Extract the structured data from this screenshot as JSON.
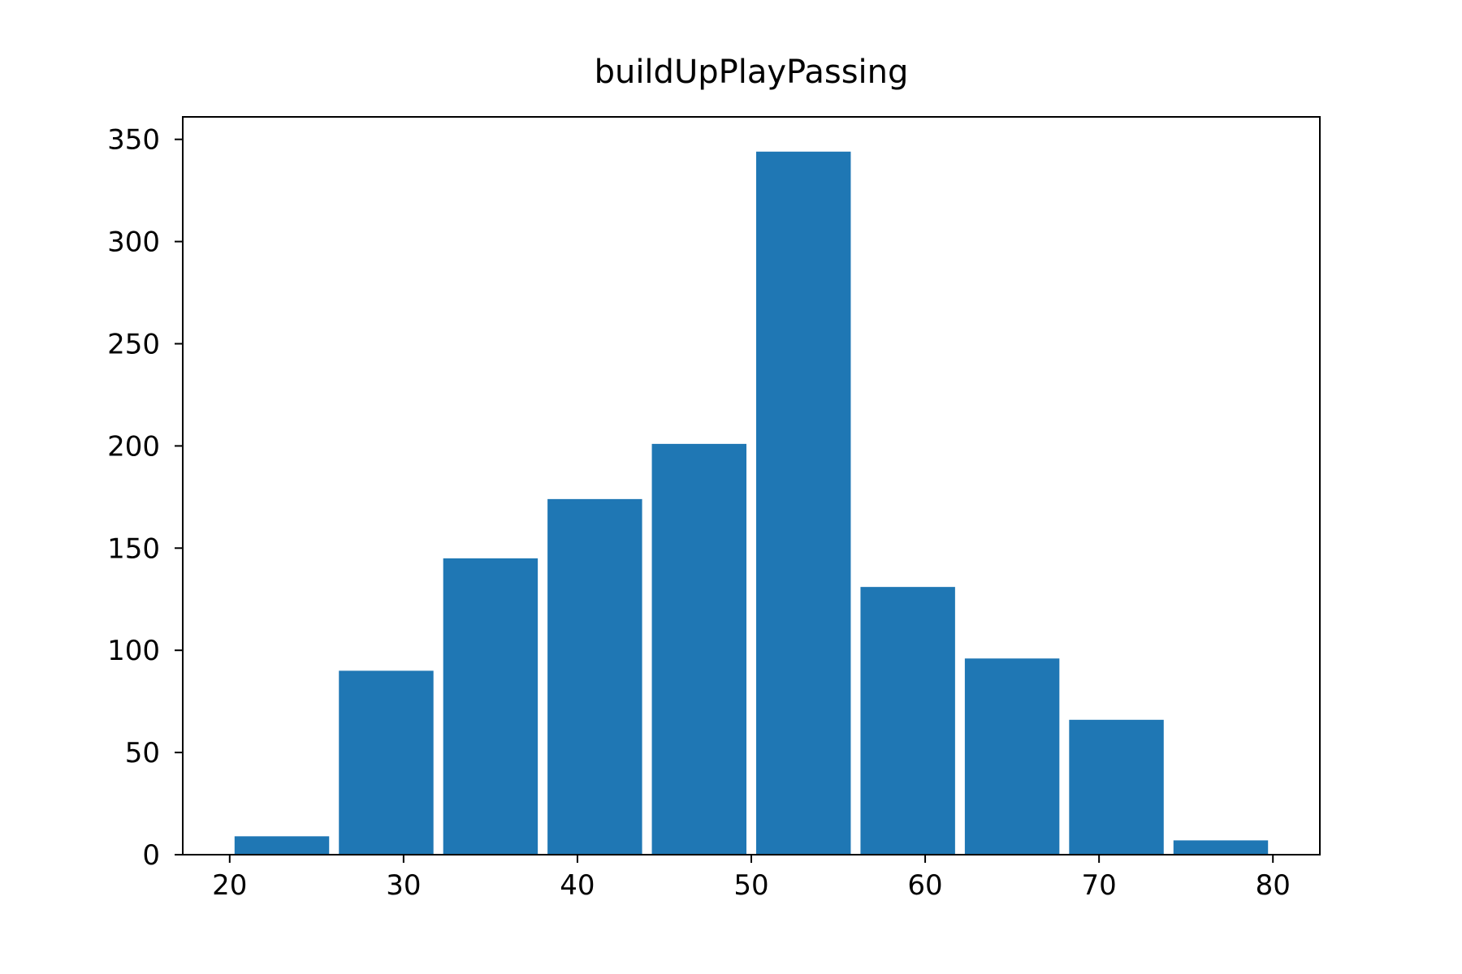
{
  "chart_data": {
    "type": "bar",
    "title": "buildUpPlayPassing",
    "xlabel": "",
    "ylabel": "",
    "bins": [
      {
        "start": 20,
        "end": 26,
        "count": 9
      },
      {
        "start": 26,
        "end": 32,
        "count": 90
      },
      {
        "start": 32,
        "end": 38,
        "count": 145
      },
      {
        "start": 38,
        "end": 44,
        "count": 174
      },
      {
        "start": 44,
        "end": 50,
        "count": 201
      },
      {
        "start": 50,
        "end": 56,
        "count": 344
      },
      {
        "start": 56,
        "end": 62,
        "count": 131
      },
      {
        "start": 62,
        "end": 68,
        "count": 96
      },
      {
        "start": 68,
        "end": 74,
        "count": 66
      },
      {
        "start": 74,
        "end": 80,
        "count": 7
      }
    ],
    "xlim": [
      17.3,
      82.7
    ],
    "ylim": [
      0,
      361
    ],
    "xticks": [
      20,
      30,
      40,
      50,
      60,
      70,
      80
    ],
    "yticks": [
      0,
      50,
      100,
      150,
      200,
      250,
      300,
      350
    ],
    "grid": false,
    "legend": "none",
    "colors": {
      "bar": "#1f77b4",
      "axis": "#000000",
      "background": "#ffffff"
    }
  }
}
